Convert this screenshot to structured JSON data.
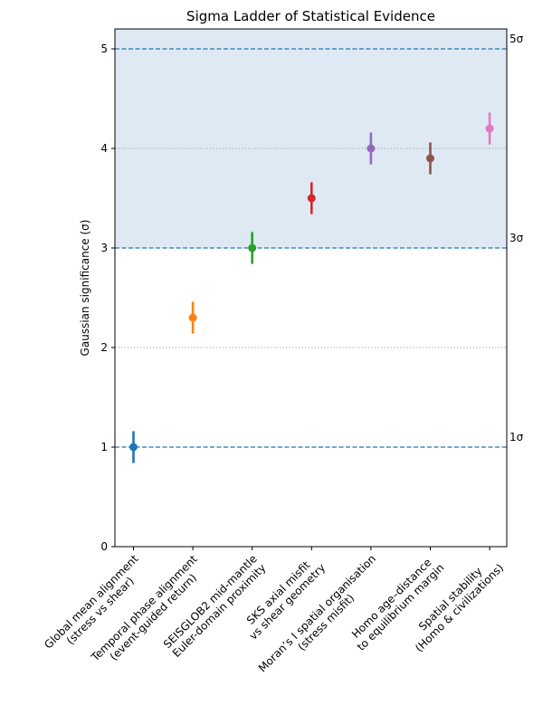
{
  "chart_data": {
    "type": "scatter",
    "title": "Sigma Ladder of Statistical Evidence",
    "xlabel": "",
    "ylabel": "Gaussian significance (σ)",
    "ylim": [
      0,
      5.2
    ],
    "yticks": [
      "0",
      "1",
      "2",
      "3",
      "4",
      "5"
    ],
    "shaded_band": [
      3,
      5.2
    ],
    "reference_lines": [
      {
        "y": 1,
        "label": "1σ"
      },
      {
        "y": 3,
        "label": "3σ"
      },
      {
        "y": 5,
        "label": "5σ"
      }
    ],
    "dotted_gridlines": [
      2,
      4
    ],
    "grid": false,
    "categories": [
      [
        "Global mean alignment",
        "(stress vs shear)"
      ],
      [
        "Temporal phase alignment",
        "(event-guided return)"
      ],
      [
        "SEISGLOB2 mid-mantle",
        "Euler-domain proximity"
      ],
      [
        "SKS axial misfit",
        "vs shear geometry"
      ],
      [
        "Moran’s I spatial organisation",
        "(stress misfit)"
      ],
      [
        "Homo age–distance",
        "to equilibrium margin"
      ],
      [
        "Spatial stability",
        "(Homo & civilizations)"
      ]
    ],
    "points": [
      {
        "y": 1.0,
        "err": 0.16,
        "color": "#1f77b4"
      },
      {
        "y": 2.3,
        "err": 0.16,
        "color": "#ff7f0e"
      },
      {
        "y": 3.0,
        "err": 0.16,
        "color": "#2ca02c"
      },
      {
        "y": 3.5,
        "err": 0.16,
        "color": "#d62728"
      },
      {
        "y": 4.0,
        "err": 0.16,
        "color": "#9467bd"
      },
      {
        "y": 3.9,
        "err": 0.16,
        "color": "#8c564b"
      },
      {
        "y": 4.2,
        "err": 0.16,
        "color": "#e377c2"
      }
    ],
    "colors": {
      "band": "#dee9f3",
      "refline": "#1f77b4",
      "grid": "#b0b0b0"
    }
  }
}
